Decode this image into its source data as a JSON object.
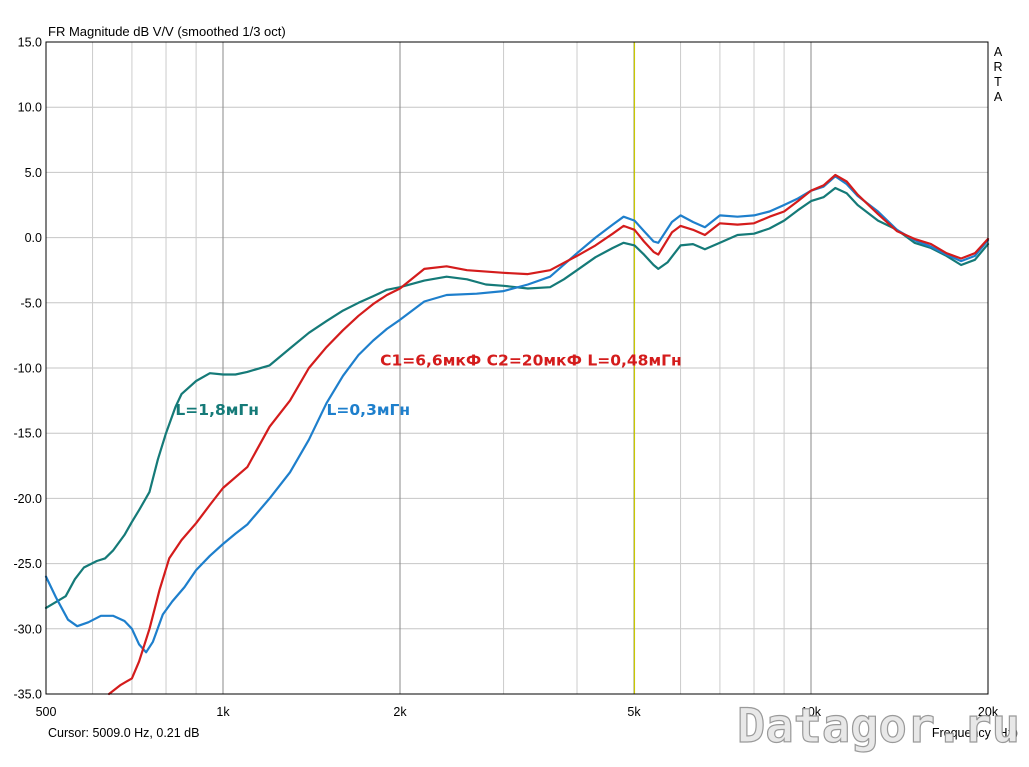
{
  "title": "FR Magnitude dB V/V (smoothed 1/3 oct)",
  "side_label": [
    "A",
    "R",
    "T",
    "A"
  ],
  "cursor_readout": "Cursor: 5009.0 Hz, 0.21 dB",
  "xlabel": "Frequency (Hz)",
  "watermark": "Datagor.ru",
  "chart_data": {
    "type": "line",
    "x_scale": "log",
    "xlim": [
      500,
      20000
    ],
    "ylim": [
      -35,
      15
    ],
    "y_step": 5,
    "grid": true,
    "x_ticks": [
      {
        "value": 500,
        "label": "500"
      },
      {
        "value": 1000,
        "label": "1k"
      },
      {
        "value": 2000,
        "label": "2k"
      },
      {
        "value": 5000,
        "label": "5k"
      },
      {
        "value": 10000,
        "label": "10k"
      },
      {
        "value": 20000,
        "label": "20k"
      }
    ],
    "y_ticks": [
      {
        "value": 15,
        "label": "15.0"
      },
      {
        "value": 10,
        "label": "10.0"
      },
      {
        "value": 5,
        "label": "5.0"
      },
      {
        "value": 0,
        "label": "0.0"
      },
      {
        "value": -5,
        "label": "-5.0"
      },
      {
        "value": -10,
        "label": "-10.0"
      },
      {
        "value": -15,
        "label": "-15.0"
      },
      {
        "value": -20,
        "label": "-20.0"
      },
      {
        "value": -25,
        "label": "-25.0"
      },
      {
        "value": -30,
        "label": "-30.0"
      },
      {
        "value": -35,
        "label": "-35.0"
      }
    ],
    "cursor": {
      "x": 5009,
      "color": "#c8c800"
    },
    "series": [
      {
        "name": "L=1,8мГн",
        "color": "#157a78",
        "points": [
          [
            500,
            -28.4
          ],
          [
            540,
            -27.5
          ],
          [
            560,
            -26.2
          ],
          [
            580,
            -25.3
          ],
          [
            610,
            -24.8
          ],
          [
            630,
            -24.6
          ],
          [
            650,
            -24.0
          ],
          [
            680,
            -22.8
          ],
          [
            700,
            -21.8
          ],
          [
            720,
            -20.9
          ],
          [
            750,
            -19.5
          ],
          [
            775,
            -17.0
          ],
          [
            800,
            -15.0
          ],
          [
            830,
            -13.0
          ],
          [
            850,
            -12.0
          ],
          [
            900,
            -11.0
          ],
          [
            950,
            -10.4
          ],
          [
            1000,
            -10.5
          ],
          [
            1050,
            -10.5
          ],
          [
            1100,
            -10.3
          ],
          [
            1200,
            -9.8
          ],
          [
            1300,
            -8.5
          ],
          [
            1400,
            -7.3
          ],
          [
            1500,
            -6.4
          ],
          [
            1600,
            -5.6
          ],
          [
            1700,
            -5.0
          ],
          [
            1800,
            -4.5
          ],
          [
            1900,
            -4.0
          ],
          [
            2000,
            -3.8
          ],
          [
            2200,
            -3.3
          ],
          [
            2400,
            -3.0
          ],
          [
            2600,
            -3.2
          ],
          [
            2800,
            -3.6
          ],
          [
            3000,
            -3.7
          ],
          [
            3300,
            -3.9
          ],
          [
            3600,
            -3.8
          ],
          [
            3800,
            -3.2
          ],
          [
            4000,
            -2.5
          ],
          [
            4300,
            -1.5
          ],
          [
            4600,
            -0.8
          ],
          [
            4800,
            -0.4
          ],
          [
            5009,
            -0.6
          ],
          [
            5200,
            -1.3
          ],
          [
            5400,
            -2.1
          ],
          [
            5500,
            -2.4
          ],
          [
            5700,
            -1.9
          ],
          [
            6000,
            -0.6
          ],
          [
            6300,
            -0.5
          ],
          [
            6600,
            -0.9
          ],
          [
            7000,
            -0.4
          ],
          [
            7500,
            0.2
          ],
          [
            8000,
            0.3
          ],
          [
            8500,
            0.7
          ],
          [
            9000,
            1.3
          ],
          [
            9500,
            2.1
          ],
          [
            10000,
            2.8
          ],
          [
            10500,
            3.1
          ],
          [
            11000,
            3.8
          ],
          [
            11500,
            3.4
          ],
          [
            12000,
            2.5
          ],
          [
            13000,
            1.3
          ],
          [
            14000,
            0.6
          ],
          [
            15000,
            -0.4
          ],
          [
            16000,
            -0.8
          ],
          [
            17000,
            -1.4
          ],
          [
            18000,
            -2.1
          ],
          [
            19000,
            -1.7
          ],
          [
            20000,
            -0.5
          ]
        ]
      },
      {
        "name": "L=0,3мГн",
        "color": "#1e7fcc",
        "points": [
          [
            500,
            -26.0
          ],
          [
            520,
            -27.6
          ],
          [
            545,
            -29.3
          ],
          [
            565,
            -29.8
          ],
          [
            590,
            -29.5
          ],
          [
            620,
            -29.0
          ],
          [
            650,
            -29.0
          ],
          [
            680,
            -29.4
          ],
          [
            700,
            -30.0
          ],
          [
            720,
            -31.2
          ],
          [
            740,
            -31.8
          ],
          [
            760,
            -31.0
          ],
          [
            790,
            -28.9
          ],
          [
            820,
            -27.9
          ],
          [
            860,
            -26.8
          ],
          [
            900,
            -25.5
          ],
          [
            950,
            -24.4
          ],
          [
            1000,
            -23.5
          ],
          [
            1050,
            -22.7
          ],
          [
            1100,
            -22.0
          ],
          [
            1200,
            -20.0
          ],
          [
            1300,
            -18.0
          ],
          [
            1400,
            -15.5
          ],
          [
            1500,
            -12.7
          ],
          [
            1600,
            -10.6
          ],
          [
            1700,
            -9.0
          ],
          [
            1800,
            -7.9
          ],
          [
            1900,
            -7.0
          ],
          [
            2000,
            -6.3
          ],
          [
            2200,
            -4.9
          ],
          [
            2400,
            -4.4
          ],
          [
            2700,
            -4.3
          ],
          [
            3000,
            -4.1
          ],
          [
            3300,
            -3.6
          ],
          [
            3600,
            -3.0
          ],
          [
            4000,
            -1.2
          ],
          [
            4300,
            0.0
          ],
          [
            4600,
            1.0
          ],
          [
            4800,
            1.6
          ],
          [
            5009,
            1.3
          ],
          [
            5200,
            0.5
          ],
          [
            5400,
            -0.3
          ],
          [
            5500,
            -0.4
          ],
          [
            5800,
            1.2
          ],
          [
            6000,
            1.7
          ],
          [
            6300,
            1.2
          ],
          [
            6600,
            0.8
          ],
          [
            7000,
            1.7
          ],
          [
            7500,
            1.6
          ],
          [
            8000,
            1.7
          ],
          [
            8500,
            2.0
          ],
          [
            9000,
            2.5
          ],
          [
            9500,
            3.0
          ],
          [
            10000,
            3.6
          ],
          [
            10500,
            3.9
          ],
          [
            11000,
            4.7
          ],
          [
            11500,
            4.1
          ],
          [
            12000,
            3.2
          ],
          [
            13000,
            2.0
          ],
          [
            14000,
            0.6
          ],
          [
            15000,
            -0.2
          ],
          [
            16000,
            -0.7
          ],
          [
            17000,
            -1.3
          ],
          [
            18000,
            -1.8
          ],
          [
            19000,
            -1.4
          ],
          [
            20000,
            -0.2
          ]
        ]
      },
      {
        "name": "C1=6,6мкФ C2=20мкФ L=0,48мГн",
        "color": "#d41c1c",
        "points": [
          [
            640,
            -35.0
          ],
          [
            670,
            -34.3
          ],
          [
            700,
            -33.8
          ],
          [
            720,
            -32.5
          ],
          [
            750,
            -30.0
          ],
          [
            780,
            -27.0
          ],
          [
            810,
            -24.6
          ],
          [
            850,
            -23.2
          ],
          [
            900,
            -21.9
          ],
          [
            950,
            -20.5
          ],
          [
            1000,
            -19.2
          ],
          [
            1100,
            -17.6
          ],
          [
            1200,
            -14.5
          ],
          [
            1300,
            -12.5
          ],
          [
            1400,
            -10.0
          ],
          [
            1500,
            -8.4
          ],
          [
            1600,
            -7.1
          ],
          [
            1700,
            -6.0
          ],
          [
            1800,
            -5.1
          ],
          [
            1900,
            -4.4
          ],
          [
            2000,
            -3.9
          ],
          [
            2200,
            -2.4
          ],
          [
            2400,
            -2.2
          ],
          [
            2600,
            -2.5
          ],
          [
            3000,
            -2.7
          ],
          [
            3300,
            -2.8
          ],
          [
            3600,
            -2.5
          ],
          [
            4000,
            -1.4
          ],
          [
            4300,
            -0.6
          ],
          [
            4600,
            0.3
          ],
          [
            4800,
            0.9
          ],
          [
            5009,
            0.6
          ],
          [
            5200,
            -0.3
          ],
          [
            5400,
            -1.1
          ],
          [
            5500,
            -1.3
          ],
          [
            5800,
            0.4
          ],
          [
            6000,
            0.9
          ],
          [
            6300,
            0.6
          ],
          [
            6600,
            0.2
          ],
          [
            7000,
            1.1
          ],
          [
            7500,
            1.0
          ],
          [
            8000,
            1.1
          ],
          [
            8500,
            1.6
          ],
          [
            9000,
            2.0
          ],
          [
            9500,
            2.8
          ],
          [
            10000,
            3.6
          ],
          [
            10500,
            4.0
          ],
          [
            11000,
            4.8
          ],
          [
            11500,
            4.3
          ],
          [
            12000,
            3.3
          ],
          [
            13000,
            1.8
          ],
          [
            14000,
            0.5
          ],
          [
            15000,
            -0.1
          ],
          [
            16000,
            -0.5
          ],
          [
            17000,
            -1.2
          ],
          [
            18000,
            -1.6
          ],
          [
            19000,
            -1.2
          ],
          [
            20000,
            -0.1
          ]
        ]
      }
    ],
    "annotations": [
      {
        "text": "C1=6,6мкФ C2=20мкФ L=0,48мГн",
        "color": "#d41c1c",
        "x": 1850,
        "y": -9.8
      },
      {
        "text": "L=1,8мГн",
        "color": "#157a78",
        "x": 830,
        "y": -13.6
      },
      {
        "text": "L=0,3мГн",
        "color": "#1e7fcc",
        "x": 1500,
        "y": -13.6
      }
    ]
  }
}
